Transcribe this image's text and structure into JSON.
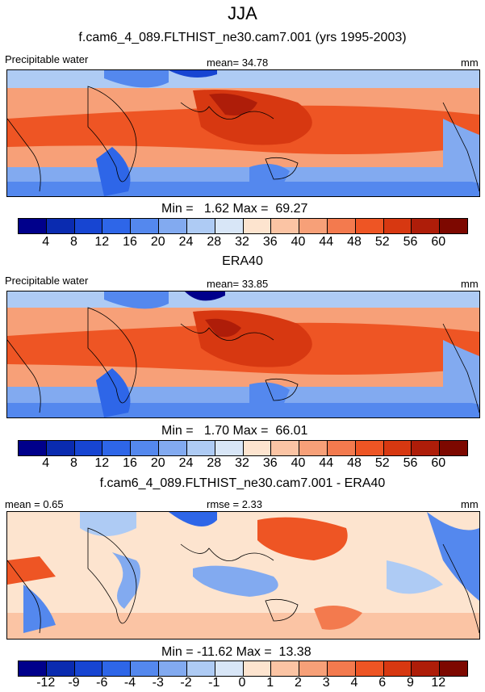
{
  "title": "JJA",
  "panel1": {
    "subtitle": "f.cam6_4_089.FLTHIST_ne30.cam7.001 (yrs 1995-2003)",
    "left_label": "Precipitable water",
    "center_label": "mean=  34.78",
    "units": "mm",
    "minmax": "Min =   1.62 Max =  69.27"
  },
  "panel2": {
    "subtitle": "ERA40",
    "left_label": "Precipitable water",
    "center_label": "mean=  33.85",
    "units": "mm",
    "minmax": "Min =   1.70 Max =  66.01"
  },
  "panel3": {
    "subtitle": "f.cam6_4_089.FLTHIST_ne30.cam7.001 - ERA40",
    "left_label": "mean =   0.65",
    "center_label": "rmse =   2.33",
    "units": "mm",
    "minmax": "Min = -11.62 Max =  13.38"
  },
  "colorbar_abs": {
    "ticks": [
      "4",
      "8",
      "12",
      "16",
      "20",
      "24",
      "28",
      "32",
      "36",
      "40",
      "44",
      "48",
      "52",
      "56",
      "60"
    ],
    "colors": [
      "#00008b",
      "#0a2bb0",
      "#1745d2",
      "#2e66e8",
      "#5488ee",
      "#82aaf0",
      "#aecbf4",
      "#d8e6f7",
      "#fde4cf",
      "#fbc4a4",
      "#f7a078",
      "#f37a4e",
      "#ee5524",
      "#d73811",
      "#ae1d09",
      "#7d0800"
    ]
  },
  "colorbar_diff": {
    "ticks": [
      "-12",
      "-9",
      "-6",
      "-4",
      "-3",
      "-2",
      "-1",
      "0",
      "1",
      "2",
      "3",
      "4",
      "6",
      "9",
      "12"
    ],
    "colors": [
      "#00008b",
      "#0a2bb0",
      "#1745d2",
      "#2e66e8",
      "#5488ee",
      "#82aaf0",
      "#aecbf4",
      "#d8e6f7",
      "#fde4cf",
      "#fbc4a4",
      "#f7a078",
      "#f37a4e",
      "#ee5524",
      "#d73811",
      "#ae1d09",
      "#7d0800"
    ]
  }
}
